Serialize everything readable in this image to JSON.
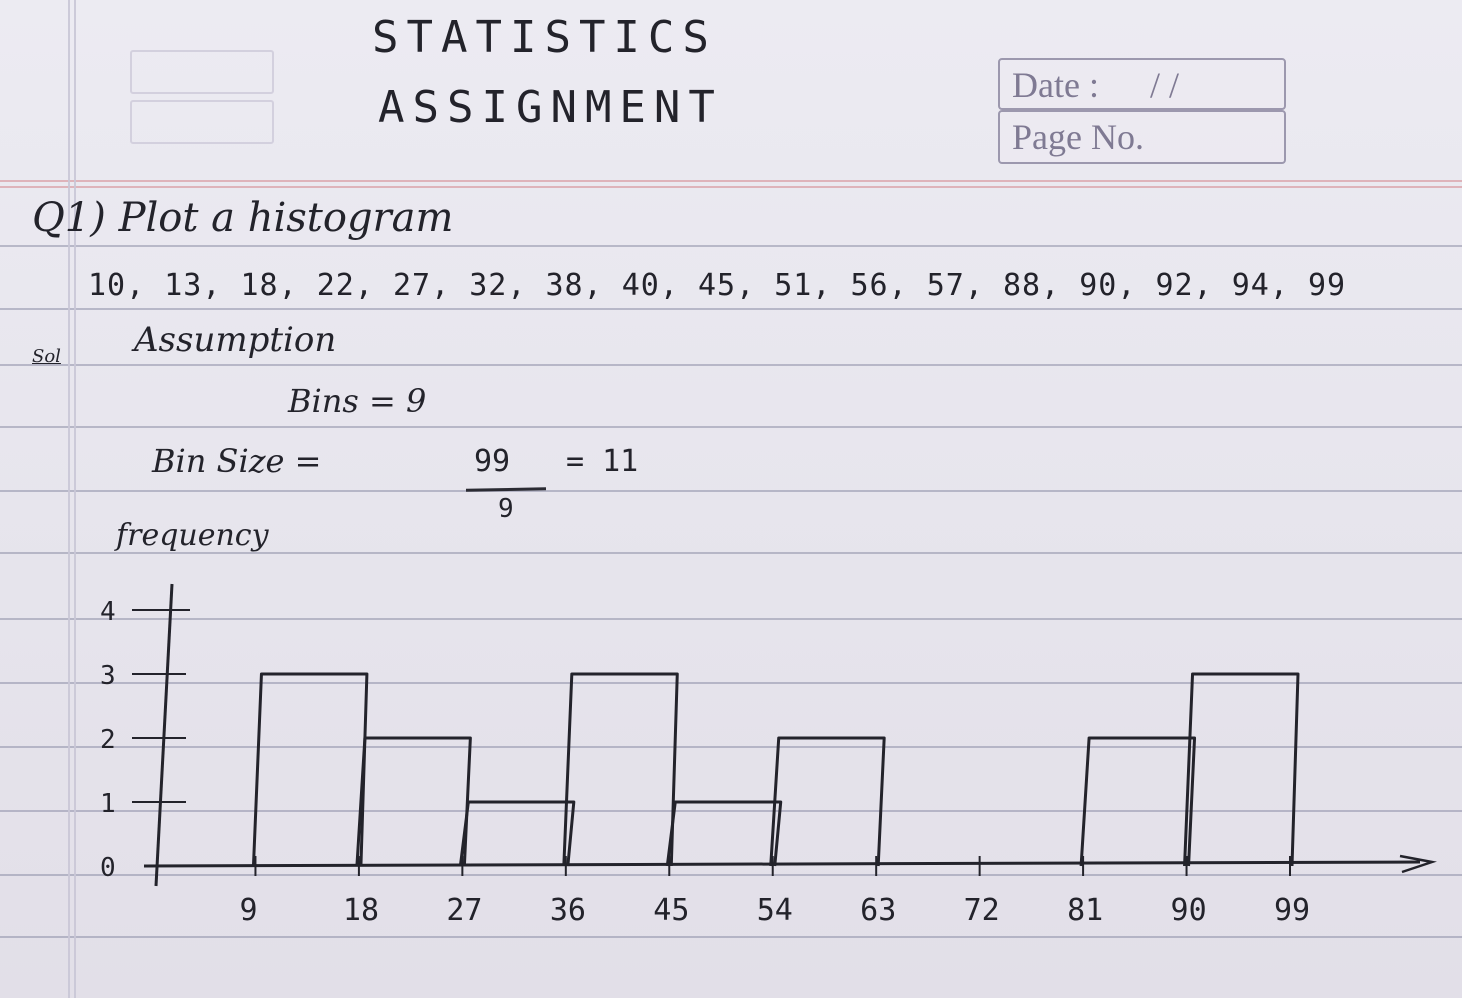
{
  "header": {
    "title_line1": "STATISTICS",
    "title_line2": "ASSIGNMENT",
    "date_label": "Date :",
    "date_slashes": "/ /",
    "page_label": "Page No."
  },
  "question": {
    "label": "Q1) Plot a histogram",
    "data_text": "10, 13, 18, 22, 27, 32, 38, 40, 45, 51, 56, 57, 88, 90, 92, 94, 99"
  },
  "solution": {
    "sol_label": "Sol",
    "assumption": "Assumption",
    "bins_text": "Bins = 9",
    "bin_size_text": "Bin Size =",
    "bin_size_numerator": "99",
    "bin_size_denominator": "9",
    "bin_size_result": "= 11"
  },
  "chart_data": {
    "type": "bar",
    "ylabel": "frequency",
    "x_ticks": [
      "9",
      "18",
      "27",
      "36",
      "45",
      "54",
      "63",
      "72",
      "81",
      "90",
      "99"
    ],
    "y_ticks": [
      "0",
      "1",
      "2",
      "3",
      "4"
    ],
    "ylim": [
      0,
      4
    ],
    "xlim": [
      0,
      99
    ],
    "bins": [
      {
        "from": 9,
        "to": 18,
        "value": 3
      },
      {
        "from": 18,
        "to": 27,
        "value": 2
      },
      {
        "from": 27,
        "to": 36,
        "value": 1
      },
      {
        "from": 36,
        "to": 45,
        "value": 3
      },
      {
        "from": 45,
        "to": 54,
        "value": 1
      },
      {
        "from": 54,
        "to": 63,
        "value": 2
      },
      {
        "from": 63,
        "to": 72,
        "value": 0
      },
      {
        "from": 72,
        "to": 81,
        "value": 0
      },
      {
        "from": 81,
        "to": 90,
        "value": 2
      },
      {
        "from": 90,
        "to": 99,
        "value": 3
      }
    ]
  },
  "colors": {
    "ink": "#23232b",
    "rule": "#8e8fa8",
    "box_ink": "#7f7a93"
  }
}
